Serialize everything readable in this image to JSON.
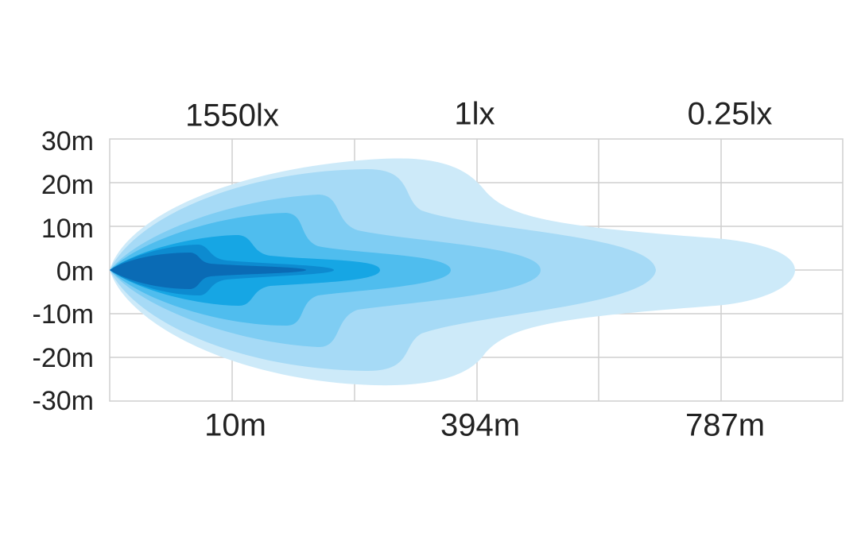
{
  "y_axis": {
    "labels": [
      "30m",
      "20m",
      "10m",
      "0m",
      "-10m",
      "-20m",
      "-30m"
    ]
  },
  "top_labels": [
    "1550lx",
    "1lx",
    "0.25lx"
  ],
  "bottom_labels": [
    "10m",
    "394m",
    "787m"
  ]
}
